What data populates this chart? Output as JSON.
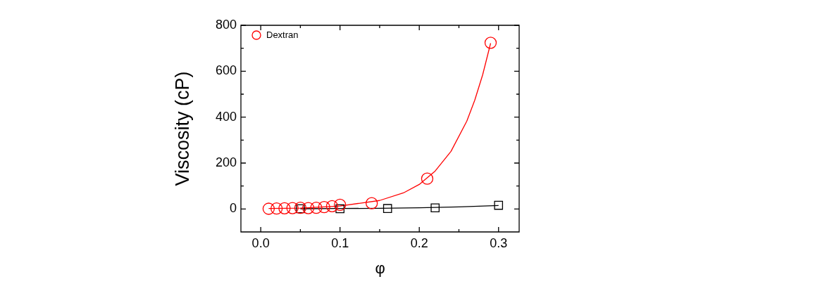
{
  "chart_data": {
    "type": "scatter",
    "xlabel": "φ",
    "ylabel": "Viscosity (cP)",
    "legend": "top left",
    "xlim": [
      -0.025,
      0.326
    ],
    "ylim": [
      -100,
      800
    ],
    "xticks": [
      {
        "value": 0,
        "label": "0.0"
      },
      {
        "value": 0.05,
        "label": null
      },
      {
        "value": 0.1,
        "label": "0.1"
      },
      {
        "value": 0.15,
        "label": null
      },
      {
        "value": 0.2,
        "label": "0.2"
      },
      {
        "value": 0.25,
        "label": null
      },
      {
        "value": 0.3,
        "label": "0.3"
      }
    ],
    "yticks": [
      0,
      {
        "value": 100,
        "label": null
      },
      200,
      {
        "value": 300,
        "label": null
      },
      400,
      {
        "value": 500,
        "label": null
      },
      600,
      {
        "value": 700,
        "label": null
      },
      800
    ],
    "series": [
      {
        "name": "Dextran",
        "color": "#ff0000",
        "marker": "circle",
        "x": [
          0.01,
          0.02,
          0.03,
          0.04,
          0.05,
          0.06,
          0.07,
          0.08,
          0.09,
          0.1,
          0.14,
          0.21,
          0.29
        ],
        "values": [
          1,
          2,
          3,
          4,
          5,
          4,
          5,
          8,
          12,
          18,
          25,
          132,
          724
        ]
      },
      {
        "color": "#000000",
        "marker": "square",
        "x": [
          0.05,
          0.1,
          0.16,
          0.22,
          0.3
        ],
        "values": [
          1,
          1,
          2,
          5,
          16
        ]
      },
      {
        "type": "line",
        "color": "#ff0000",
        "marker": "none",
        "x": [
          0.01,
          0.05,
          0.1,
          0.15,
          0.18,
          0.2,
          0.22,
          0.24,
          0.26,
          0.27,
          0.28,
          0.29
        ],
        "values": [
          2,
          4,
          13,
          37,
          70,
          107,
          165,
          251,
          383,
          474,
          585,
          722
        ]
      },
      {
        "type": "line",
        "color": "#000000",
        "marker": "none",
        "x": [
          0.05,
          0.1,
          0.15,
          0.2,
          0.25,
          0.3
        ],
        "values": [
          1,
          2,
          3,
          5,
          9,
          15
        ]
      }
    ]
  }
}
